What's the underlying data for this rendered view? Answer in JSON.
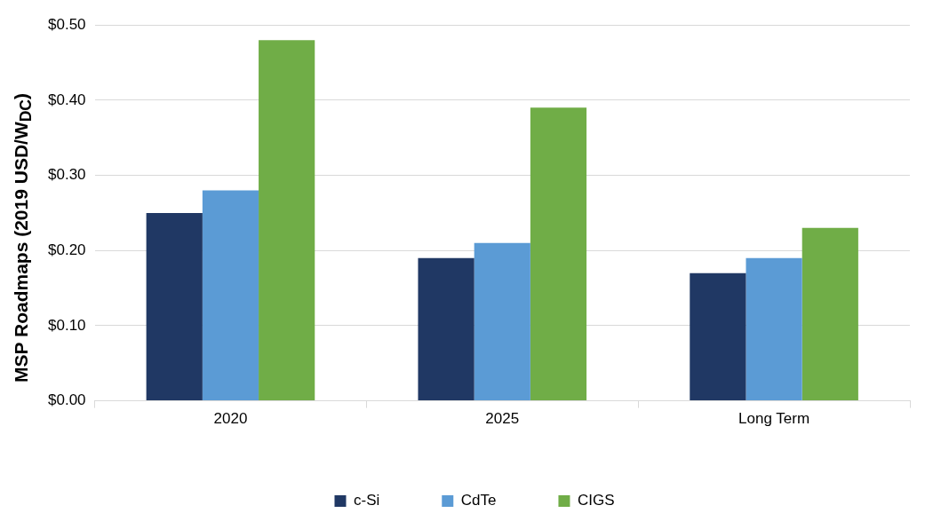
{
  "chart_data": {
    "type": "bar",
    "ylabel": "MSP Roadmaps (2019 USD/W$_{DC}$)",
    "categories": [
      "2020",
      "2025",
      "Long Term"
    ],
    "series": [
      {
        "name": "c-Si",
        "color": "#203864",
        "values": [
          0.25,
          0.19,
          0.17
        ]
      },
      {
        "name": "CdTe",
        "color": "#5b9bd5",
        "values": [
          0.28,
          0.21,
          0.19
        ]
      },
      {
        "name": "CIGS",
        "color": "#70ad47",
        "values": [
          0.48,
          0.39,
          0.23
        ]
      }
    ],
    "ylim": [
      0,
      0.5
    ],
    "yticks": [
      {
        "value": 0,
        "label": "$0.00"
      },
      {
        "value": 0.1,
        "label": "$0.10"
      },
      {
        "value": 0.2,
        "label": "$0.20"
      },
      {
        "value": 0.3,
        "label": "$0.30"
      },
      {
        "value": 0.4,
        "label": "$0.40"
      },
      {
        "value": 0.5,
        "label": "$0.50"
      }
    ],
    "grid": "y",
    "legend": "bottom"
  }
}
